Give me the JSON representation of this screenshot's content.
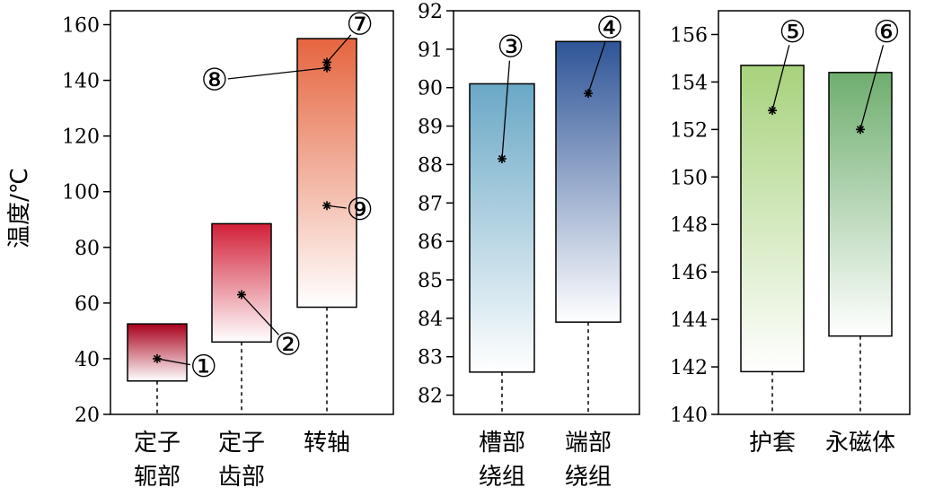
{
  "ylabel": "温度/℃",
  "chart_data": [
    {
      "type": "box",
      "ylim": [
        20,
        165
      ],
      "yticks": [
        20,
        40,
        60,
        80,
        100,
        120,
        140,
        160
      ],
      "grid": false,
      "categories": [
        {
          "label": [
            "定子",
            "轭部"
          ],
          "low": 20,
          "q1": 32,
          "q3": 52.5,
          "gradient": [
            "#a8001c",
            "#ffffff"
          ]
        },
        {
          "label": [
            "定子",
            "齿部"
          ],
          "low": 20,
          "q1": 46,
          "q3": 88.5,
          "gradient": [
            "#d22038",
            "#ffffff"
          ]
        },
        {
          "label": [
            "转轴"
          ],
          "low": 20,
          "q1": 58.5,
          "q3": 155,
          "gradient": [
            "#e5653f",
            "#ffffff"
          ]
        }
      ],
      "points": [
        {
          "cat": 0,
          "y": 40,
          "id": "①",
          "lx": 1.55,
          "ly": 37
        },
        {
          "cat": 1,
          "y": 63,
          "id": "②",
          "lx": 2.55,
          "ly": 45
        },
        {
          "cat": 2,
          "y": 146.5,
          "id": "⑦",
          "lx": 3.4,
          "ly": 160
        },
        {
          "cat": 2,
          "y": 144.5,
          "id": "⑧",
          "lx": 1.68,
          "ly": 140
        },
        {
          "cat": 2,
          "y": 95,
          "id": "⑨",
          "lx": 3.4,
          "ly": 93.5
        }
      ]
    },
    {
      "type": "box",
      "ylim": [
        81.5,
        92
      ],
      "yticks": [
        82,
        83,
        84,
        85,
        86,
        87,
        88,
        89,
        90,
        91,
        92
      ],
      "grid": false,
      "categories": [
        {
          "label": [
            "槽部",
            "绕组"
          ],
          "low": 81.5,
          "q1": 82.6,
          "q3": 90.1,
          "gradient": [
            "#6aa8c6",
            "#ffffff"
          ]
        },
        {
          "label": [
            "端部",
            "绕组"
          ],
          "low": 81.5,
          "q1": 83.9,
          "q3": 91.2,
          "gradient": [
            "#2f5597",
            "#ffffff"
          ]
        }
      ],
      "points": [
        {
          "cat": 0,
          "y": 88.15,
          "id": "③",
          "lx": 1.1,
          "ly": 91.05
        },
        {
          "cat": 1,
          "y": 89.85,
          "id": "④",
          "lx": 2.25,
          "ly": 91.55
        }
      ]
    },
    {
      "type": "box",
      "ylim": [
        140,
        157
      ],
      "yticks": [
        140,
        142,
        144,
        146,
        148,
        150,
        152,
        154,
        156
      ],
      "grid": false,
      "categories": [
        {
          "label": [
            "护套"
          ],
          "low": 140,
          "q1": 141.8,
          "q3": 154.7,
          "gradient": [
            "#a7d27c",
            "#ffffff"
          ]
        },
        {
          "label": [
            "永磁体"
          ],
          "low": 140,
          "q1": 143.3,
          "q3": 154.4,
          "gradient": [
            "#6fae6f",
            "#ffffff"
          ]
        }
      ],
      "points": [
        {
          "cat": 0,
          "y": 152.8,
          "id": "⑤",
          "lx": 1.23,
          "ly": 156.1
        },
        {
          "cat": 1,
          "y": 152.0,
          "id": "⑥",
          "lx": 2.3,
          "ly": 156.1
        }
      ]
    }
  ]
}
